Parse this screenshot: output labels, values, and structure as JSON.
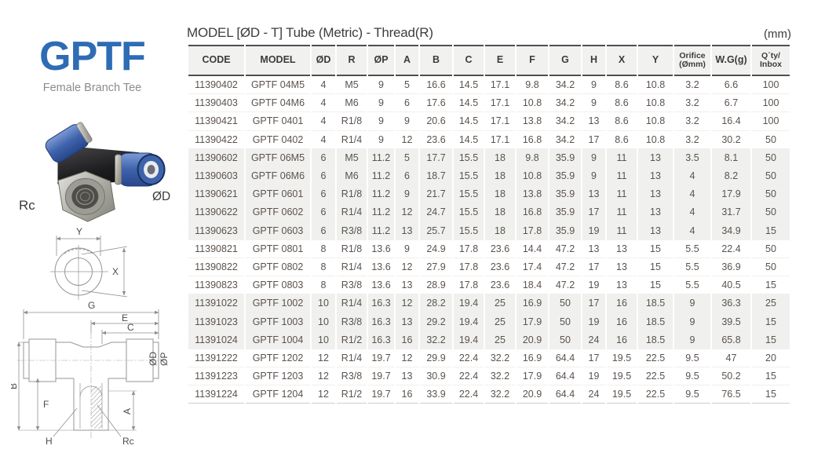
{
  "page": {
    "units_note": "(mm)"
  },
  "brand": {
    "name": "GPTF",
    "subtitle": "Female Branch Tee",
    "accent_color": "#2e6cb4"
  },
  "photo": {
    "label_thread": "Rc",
    "label_tube": "ØD"
  },
  "drawing_top": {
    "label_y": "Y",
    "label_x": "X"
  },
  "drawing_front": {
    "label_g": "G",
    "label_e": "E",
    "label_c": "C",
    "label_od": "ØD",
    "label_op": "ØP",
    "label_b": "B",
    "label_f": "F",
    "label_a": "A",
    "label_h": "H",
    "label_rc": "Rc"
  },
  "table": {
    "title": "MODEL [ØD - T]  Tube (Metric) - Thread(R)",
    "columns": [
      {
        "lines": [
          "CODE"
        ]
      },
      {
        "lines": [
          "MODEL"
        ]
      },
      {
        "lines": [
          "ØD"
        ]
      },
      {
        "lines": [
          "R"
        ]
      },
      {
        "lines": [
          "ØP"
        ]
      },
      {
        "lines": [
          "A"
        ]
      },
      {
        "lines": [
          "B"
        ]
      },
      {
        "lines": [
          "C"
        ]
      },
      {
        "lines": [
          "E"
        ]
      },
      {
        "lines": [
          "F"
        ]
      },
      {
        "lines": [
          "G"
        ]
      },
      {
        "lines": [
          "H"
        ]
      },
      {
        "lines": [
          "X"
        ]
      },
      {
        "lines": [
          "Y"
        ]
      },
      {
        "lines": [
          "Orifice",
          "(Ømm)"
        ],
        "small": true
      },
      {
        "lines": [
          "W.G(g)"
        ]
      },
      {
        "lines": [
          "Q´ty/",
          "Inbox"
        ],
        "small": true
      }
    ],
    "rows": [
      {
        "shaded": false,
        "cells": [
          "11390402",
          "GPTF 04M5",
          "4",
          "M5",
          "9",
          "5",
          "16.6",
          "14.5",
          "17.1",
          "9.8",
          "34.2",
          "9",
          "8.6",
          "10.8",
          "3.2",
          "6.6",
          "100"
        ]
      },
      {
        "shaded": false,
        "cells": [
          "11390403",
          "GPTF 04M6",
          "4",
          "M6",
          "9",
          "6",
          "17.6",
          "14.5",
          "17.1",
          "10.8",
          "34.2",
          "9",
          "8.6",
          "10.8",
          "3.2",
          "6.7",
          "100"
        ]
      },
      {
        "shaded": false,
        "cells": [
          "11390421",
          "GPTF 0401",
          "4",
          "R1/8",
          "9",
          "9",
          "20.6",
          "14.5",
          "17.1",
          "13.8",
          "34.2",
          "13",
          "8.6",
          "10.8",
          "3.2",
          "16.4",
          "100"
        ]
      },
      {
        "shaded": false,
        "cells": [
          "11390422",
          "GPTF 0402",
          "4",
          "R1/4",
          "9",
          "12",
          "23.6",
          "14.5",
          "17.1",
          "16.8",
          "34.2",
          "17",
          "8.6",
          "10.8",
          "3.2",
          "30.2",
          "50"
        ]
      },
      {
        "shaded": true,
        "cells": [
          "11390602",
          "GPTF 06M5",
          "6",
          "M5",
          "11.2",
          "5",
          "17.7",
          "15.5",
          "18",
          "9.8",
          "35.9",
          "9",
          "11",
          "13",
          "3.5",
          "8.1",
          "50"
        ]
      },
      {
        "shaded": true,
        "cells": [
          "11390603",
          "GPTF 06M6",
          "6",
          "M6",
          "11.2",
          "6",
          "18.7",
          "15.5",
          "18",
          "10.8",
          "35.9",
          "9",
          "11",
          "13",
          "4",
          "8.2",
          "50"
        ]
      },
      {
        "shaded": true,
        "cells": [
          "11390621",
          "GPTF 0601",
          "6",
          "R1/8",
          "11.2",
          "9",
          "21.7",
          "15.5",
          "18",
          "13.8",
          "35.9",
          "13",
          "11",
          "13",
          "4",
          "17.9",
          "50"
        ]
      },
      {
        "shaded": true,
        "cells": [
          "11390622",
          "GPTF 0602",
          "6",
          "R1/4",
          "11.2",
          "12",
          "24.7",
          "15.5",
          "18",
          "16.8",
          "35.9",
          "17",
          "11",
          "13",
          "4",
          "31.7",
          "50"
        ]
      },
      {
        "shaded": true,
        "cells": [
          "11390623",
          "GPTF 0603",
          "6",
          "R3/8",
          "11.2",
          "13",
          "25.7",
          "15.5",
          "18",
          "17.8",
          "35.9",
          "19",
          "11",
          "13",
          "4",
          "34.9",
          "15"
        ]
      },
      {
        "shaded": false,
        "cells": [
          "11390821",
          "GPTF 0801",
          "8",
          "R1/8",
          "13.6",
          "9",
          "24.9",
          "17.8",
          "23.6",
          "14.4",
          "47.2",
          "13",
          "13",
          "15",
          "5.5",
          "22.4",
          "50"
        ]
      },
      {
        "shaded": false,
        "cells": [
          "11390822",
          "GPTF 0802",
          "8",
          "R1/4",
          "13.6",
          "12",
          "27.9",
          "17.8",
          "23.6",
          "17.4",
          "47.2",
          "17",
          "13",
          "15",
          "5.5",
          "36.9",
          "50"
        ]
      },
      {
        "shaded": false,
        "cells": [
          "11390823",
          "GPTF 0803",
          "8",
          "R3/8",
          "13.6",
          "13",
          "28.9",
          "17.8",
          "23.6",
          "18.4",
          "47.2",
          "19",
          "13",
          "15",
          "5.5",
          "40.5",
          "15"
        ]
      },
      {
        "shaded": true,
        "cells": [
          "11391022",
          "GPTF 1002",
          "10",
          "R1/4",
          "16.3",
          "12",
          "28.2",
          "19.4",
          "25",
          "16.9",
          "50",
          "17",
          "16",
          "18.5",
          "9",
          "36.3",
          "25"
        ]
      },
      {
        "shaded": true,
        "cells": [
          "11391023",
          "GPTF 1003",
          "10",
          "R3/8",
          "16.3",
          "13",
          "29.2",
          "19.4",
          "25",
          "17.9",
          "50",
          "19",
          "16",
          "18.5",
          "9",
          "39.5",
          "15"
        ]
      },
      {
        "shaded": true,
        "cells": [
          "11391024",
          "GPTF 1004",
          "10",
          "R1/2",
          "16.3",
          "16",
          "32.2",
          "19.4",
          "25",
          "20.9",
          "50",
          "24",
          "16",
          "18.5",
          "9",
          "65.8",
          "15"
        ]
      },
      {
        "shaded": false,
        "cells": [
          "11391222",
          "GPTF 1202",
          "12",
          "R1/4",
          "19.7",
          "12",
          "29.9",
          "22.4",
          "32.2",
          "16.9",
          "64.4",
          "17",
          "19.5",
          "22.5",
          "9.5",
          "47",
          "20"
        ]
      },
      {
        "shaded": false,
        "cells": [
          "11391223",
          "GPTF 1203",
          "12",
          "R3/8",
          "19.7",
          "13",
          "30.9",
          "22.4",
          "32.2",
          "17.9",
          "64.4",
          "19",
          "19.5",
          "22.5",
          "9.5",
          "50.2",
          "15"
        ]
      },
      {
        "shaded": false,
        "cells": [
          "11391224",
          "GPTF 1204",
          "12",
          "R1/2",
          "19.7",
          "16",
          "33.9",
          "22.4",
          "32.2",
          "20.9",
          "64.4",
          "24",
          "19.5",
          "22.5",
          "9.5",
          "76.5",
          "15"
        ]
      }
    ]
  }
}
